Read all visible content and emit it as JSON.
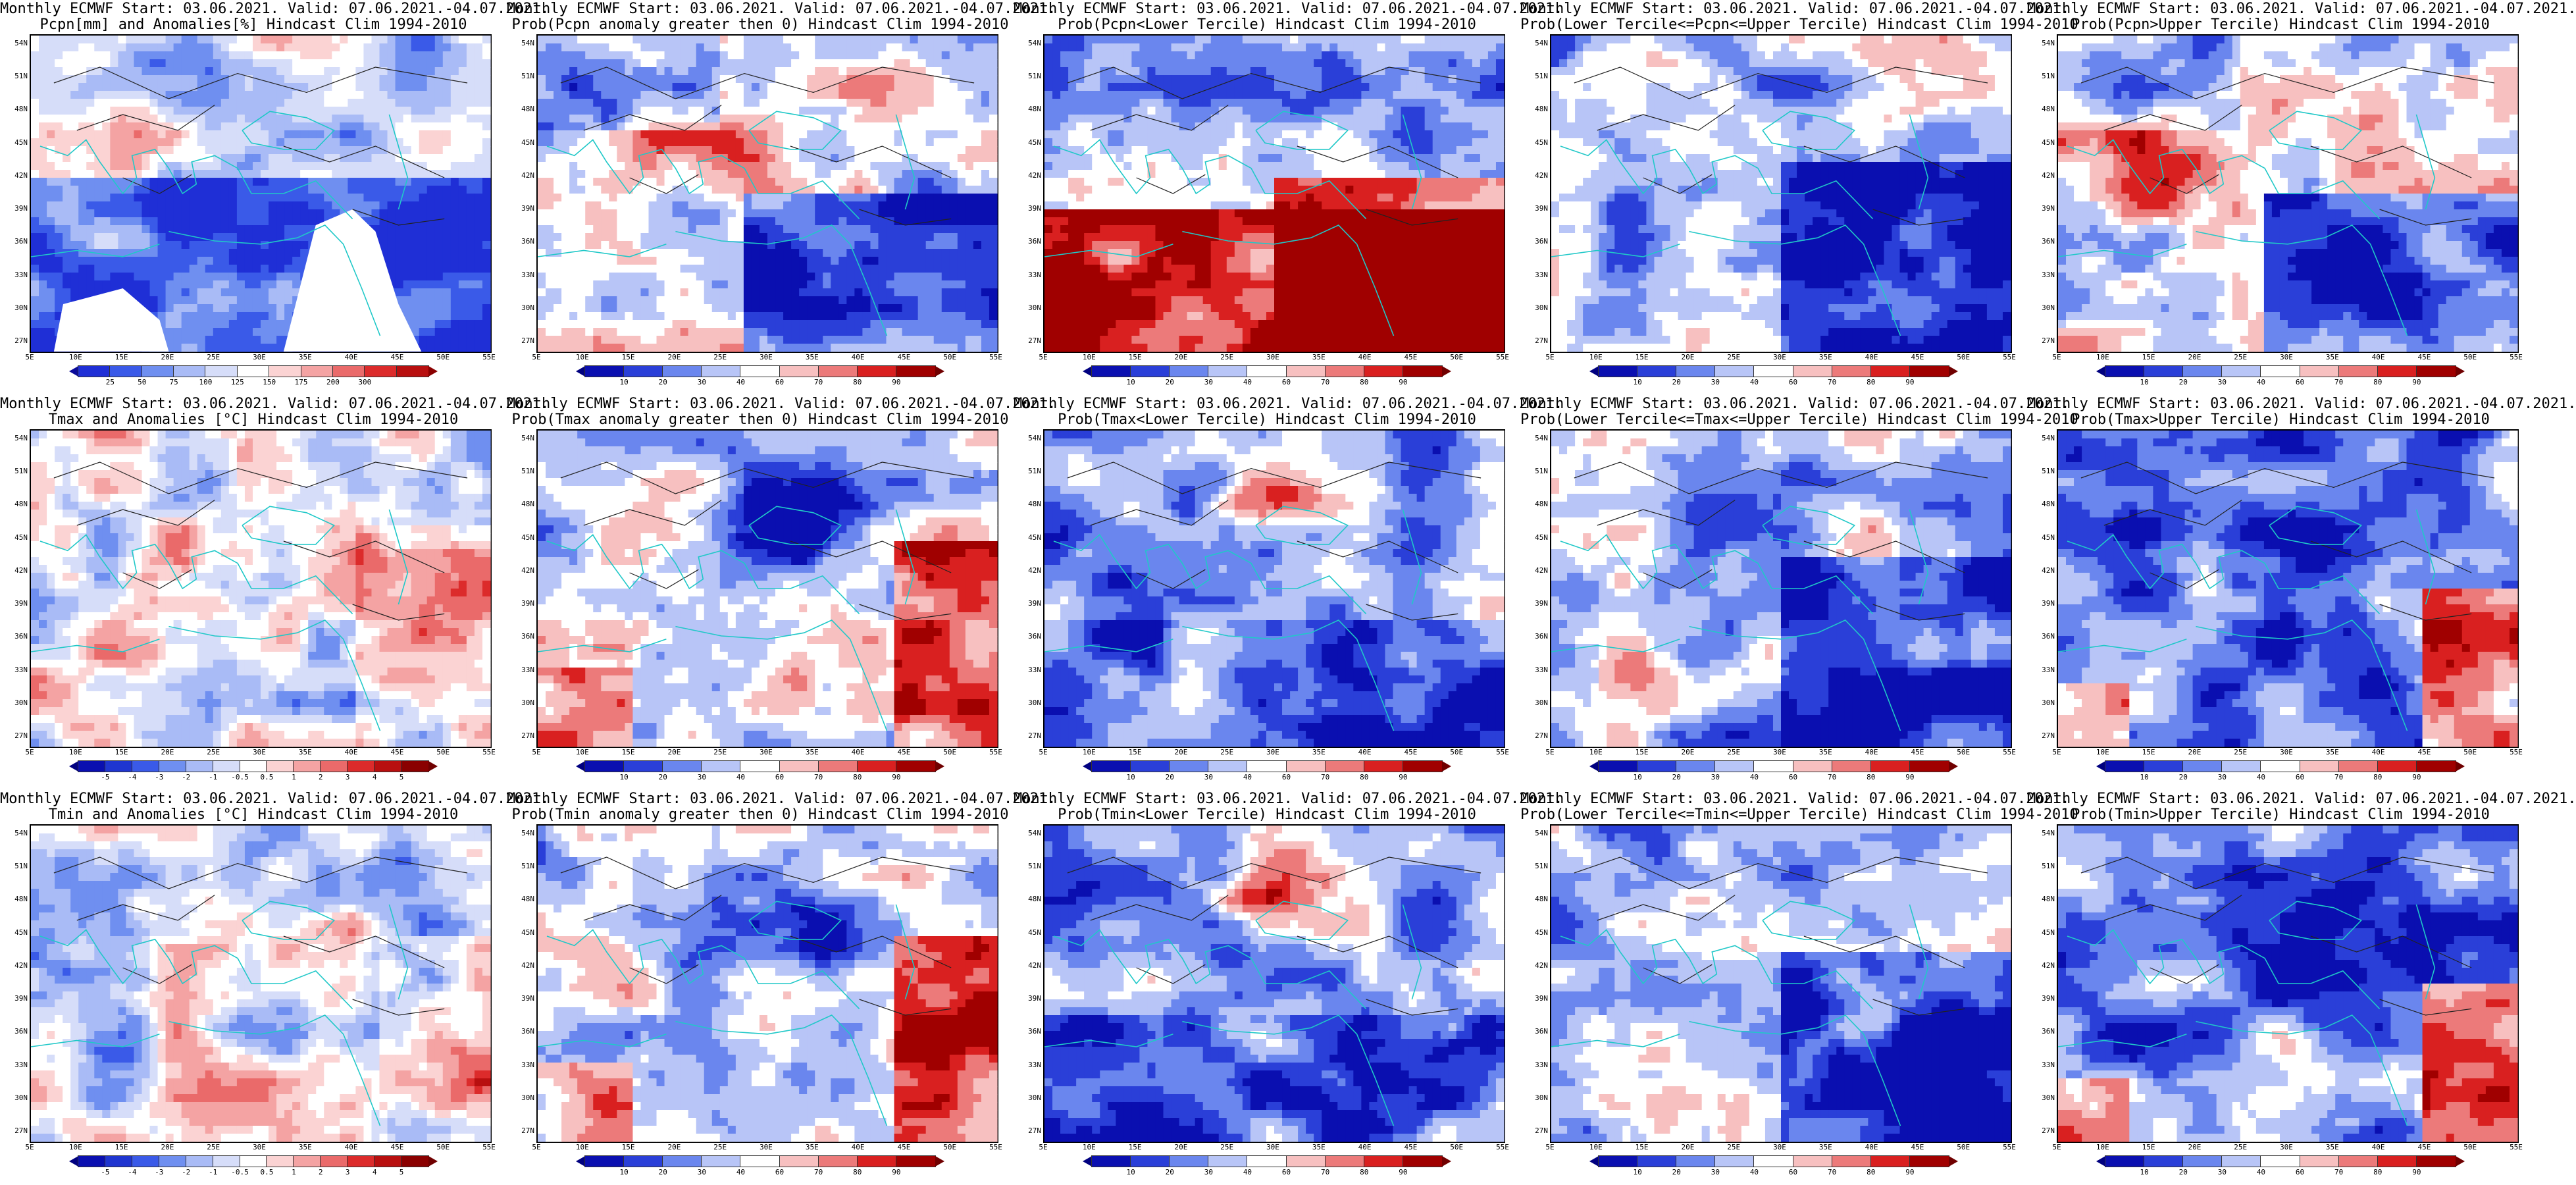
{
  "panels": [
    {
      "title1": "Monthly ECMWF Start: 03.06.2021. Valid: 07.06.2021.-04.07.2021.",
      "title2": "Pcpn[mm] and Anomalies[%] Hindcast Clim 1994-2010",
      "scale": "pcpn",
      "mode": "precip_anom"
    },
    {
      "title1": "Monthly ECMWF Start: 03.06.2021. Valid: 07.06.2021.-04.07.2021.",
      "title2": "Prob(Pcpn anomaly greater then 0) Hindcast Clim 1994-2010",
      "scale": "prob",
      "mode": "precip_prob"
    },
    {
      "title1": "Monthly ECMWF Start: 03.06.2021. Valid: 07.06.2021.-04.07.2021.",
      "title2": "Prob(Pcpn<Lower Tercile) Hindcast Clim 1994-2010",
      "scale": "prob",
      "mode": "precip_lower"
    },
    {
      "title1": "Monthly ECMWF Start: 03.06.2021. Valid: 07.06.2021.-04.07.2021.",
      "title2": "Prob(Lower Tercile<=Pcpn<=Upper Tercile) Hindcast Clim 1994-2010",
      "scale": "prob",
      "mode": "mid"
    },
    {
      "title1": "Monthly ECMWF Start: 03.06.2021. Valid: 07.06.2021.-04.07.2021.",
      "title2": "Prob(Pcpn>Upper Tercile) Hindcast Clim 1994-2010",
      "scale": "prob",
      "mode": "precip_prob"
    },
    {
      "title1": "Monthly ECMWF Start: 03.06.2021. Valid: 07.06.2021.-04.07.2021.",
      "title2": "Tmax and Anomalies [°C] Hindcast Clim 1994-2010",
      "scale": "temp",
      "mode": "temp_anom"
    },
    {
      "title1": "Monthly ECMWF Start: 03.06.2021. Valid: 07.06.2021.-04.07.2021.",
      "title2": "Prob(Tmax anomaly greater then 0) Hindcast Clim 1994-2010",
      "scale": "prob",
      "mode": "temp_prob"
    },
    {
      "title1": "Monthly ECMWF Start: 03.06.2021. Valid: 07.06.2021.-04.07.2021.",
      "title2": "Prob(Tmax<Lower Tercile) Hindcast Clim 1994-2010",
      "scale": "prob",
      "mode": "temp_lower"
    },
    {
      "title1": "Monthly ECMWF Start: 03.06.2021. Valid: 07.06.2021.-04.07.2021.",
      "title2": "Prob(Lower Tercile<=Tmax<=Upper Tercile) Hindcast Clim 1994-2010",
      "scale": "prob",
      "mode": "mid"
    },
    {
      "title1": "Monthly ECMWF Start: 03.06.2021. Valid: 07.06.2021.-04.07.2021.",
      "title2": "Prob(Tmax>Upper Tercile) Hindcast Clim 1994-2010",
      "scale": "prob",
      "mode": "temp_upper"
    },
    {
      "title1": "Monthly ECMWF Start: 03.06.2021. Valid: 07.06.2021.-04.07.2021.",
      "title2": "Tmin and Anomalies [°C] Hindcast Clim 1994-2010",
      "scale": "temp",
      "mode": "tmin_anom"
    },
    {
      "title1": "Monthly ECMWF Start: 03.06.2021. Valid: 07.06.2021.-04.07.2021.",
      "title2": "Prob(Tmin anomaly greater then 0) Hindcast Clim 1994-2010",
      "scale": "prob",
      "mode": "temp_prob"
    },
    {
      "title1": "Monthly ECMWF Start: 03.06.2021. Valid: 07.06.2021.-04.07.2021.",
      "title2": "Prob(Tmin<Lower Tercile) Hindcast Clim 1994-2010",
      "scale": "prob",
      "mode": "temp_lower"
    },
    {
      "title1": "Monthly ECMWF Start: 03.06.2021. Valid: 07.06.2021.-04.07.2021.",
      "title2": "Prob(Lower Tercile<=Tmin<=Upper Tercile) Hindcast Clim 1994-2010",
      "scale": "prob",
      "mode": "mid"
    },
    {
      "title1": "Monthly ECMWF Start: 03.06.2021. Valid: 07.06.2021.-04.07.2021.",
      "title2": "Prob(Tmin>Upper Tercile) Hindcast Clim 1994-2010",
      "scale": "prob",
      "mode": "temp_upper"
    }
  ],
  "lat_ticks": [
    "54N",
    "51N",
    "48N",
    "45N",
    "42N",
    "39N",
    "36N",
    "33N",
    "30N",
    "27N"
  ],
  "lon_ticks": [
    "5E",
    "10E",
    "15E",
    "20E",
    "25E",
    "30E",
    "35E",
    "40E",
    "45E",
    "50E",
    "55E"
  ],
  "scales": {
    "pcpn": {
      "labels": [
        "25",
        "50",
        "75",
        "100",
        "125",
        "150",
        "175",
        "200",
        "300"
      ],
      "colors": [
        "#1f2fd6",
        "#3a5ae8",
        "#6f8ff0",
        "#a9bbf6",
        "#d6ddf9",
        "#ffffff",
        "#fbd3d3",
        "#f4a3a3",
        "#ea6a6a",
        "#dc2b2b",
        "#b80f0f"
      ],
      "tip_left": "#0a0a9a",
      "tip_right": "#8a0000"
    },
    "prob": {
      "labels": [
        "10",
        "20",
        "30",
        "40",
        "60",
        "70",
        "80",
        "90"
      ],
      "colors": [
        "#0a0fb0",
        "#2a3fd8",
        "#6a86ee",
        "#b8c5f7",
        "#ffffff",
        "#f7c0c0",
        "#ec7a7a",
        "#d92020",
        "#a00000"
      ],
      "tip_left": "#000080",
      "tip_right": "#700000"
    },
    "temp": {
      "labels": [
        "-5",
        "-4",
        "-3",
        "-2",
        "-1",
        "-0.5",
        "0.5",
        "1",
        "2",
        "3",
        "4",
        "5"
      ],
      "colors": [
        "#0a0fb0",
        "#1f35d0",
        "#3a5ae8",
        "#6f8ff0",
        "#a9bbf6",
        "#d6ddf9",
        "#ffffff",
        "#fbd3d3",
        "#f4a3a3",
        "#ea6a6a",
        "#dc2b2b",
        "#b80f0f",
        "#8a0000"
      ],
      "tip_left": "#000080",
      "tip_right": "#700000"
    }
  },
  "palette": {
    "coast": "#20c8c8",
    "contour": "#222222",
    "white": "#ffffff"
  }
}
